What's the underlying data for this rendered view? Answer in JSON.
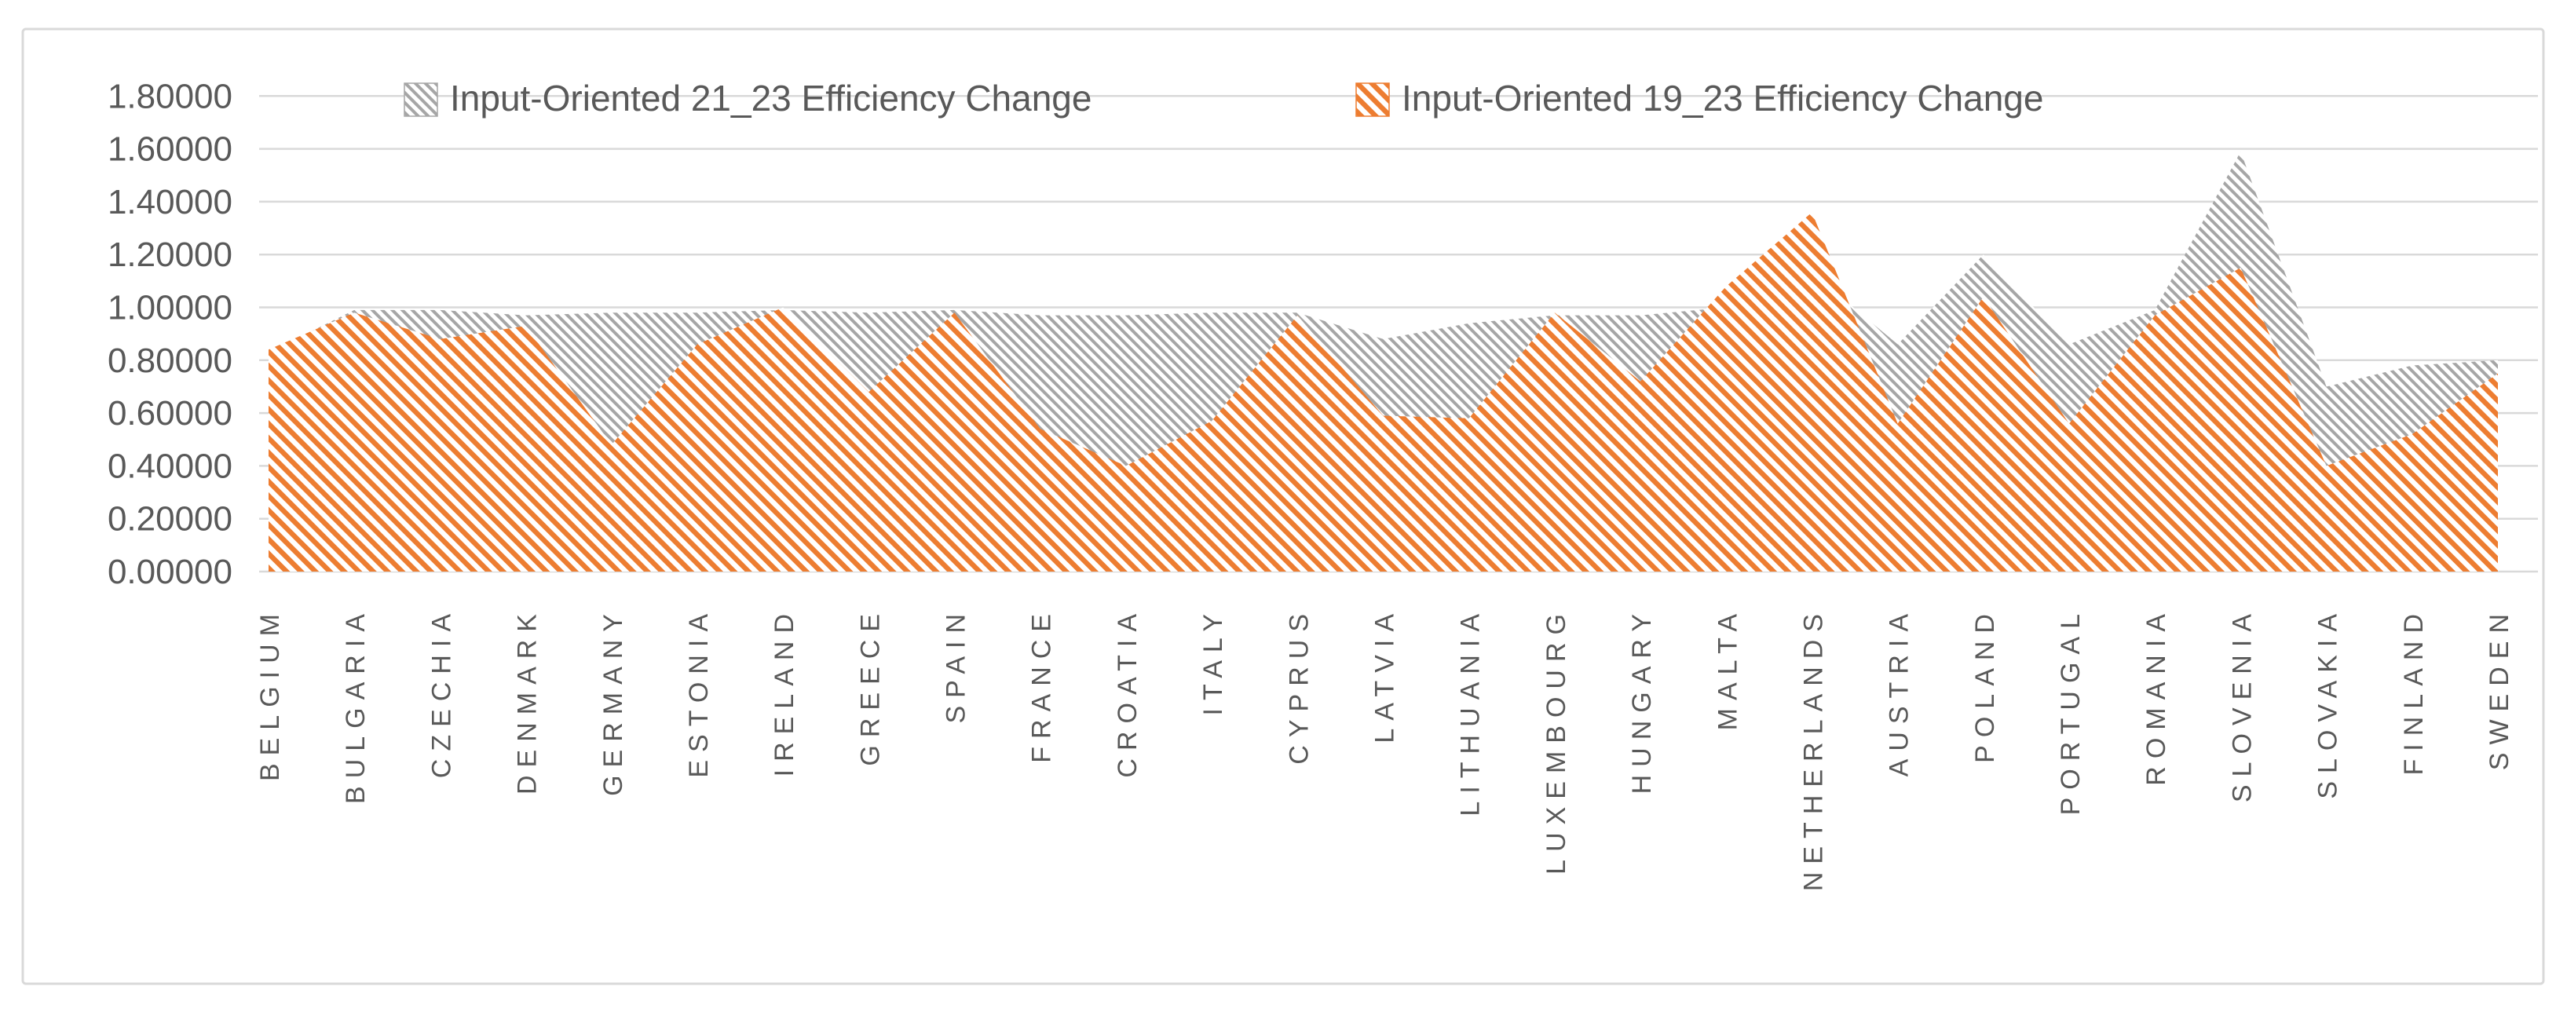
{
  "chart_data": {
    "type": "area",
    "title": "",
    "categories": [
      "BELGIUM",
      "BULGARIA",
      "CZECHIA",
      "DENMARK",
      "GERMANY",
      "ESTONIA",
      "IRELAND",
      "GREECE",
      "SPAIN",
      "FRANCE",
      "CROATIA",
      "ITALY",
      "CYPRUS",
      "LATVIA",
      "LITHUANIA",
      "LUXEMBOURG",
      "HUNGARY",
      "MALTA",
      "NETHERLANDS",
      "AUSTRIA",
      "POLAND",
      "PORTUGAL",
      "ROMANIA",
      "SLOVENIA",
      "SLOVAKIA",
      "FINLAND",
      "SWEDEN"
    ],
    "series": [
      {
        "name": "Input-Oriented 21_23 Efficiency Change",
        "color": "#A6A6A6",
        "fill_style": "diagonal-hatch",
        "values": [
          0.83,
          0.99,
          0.99,
          0.97,
          0.98,
          0.98,
          0.99,
          0.98,
          0.99,
          0.97,
          0.97,
          0.98,
          0.98,
          0.88,
          0.94,
          0.97,
          0.97,
          1.0,
          1.13,
          0.86,
          1.2,
          0.86,
          0.99,
          1.59,
          0.7,
          0.78,
          0.8
        ]
      },
      {
        "name": "Input-Oriented 19_23 Efficiency Change",
        "color": "#ED7D31",
        "fill_style": "diagonal-hatch",
        "values": [
          0.84,
          0.98,
          0.88,
          0.93,
          0.48,
          0.86,
          1.0,
          0.68,
          0.98,
          0.54,
          0.4,
          0.57,
          0.97,
          0.59,
          0.58,
          0.98,
          0.72,
          1.08,
          1.36,
          0.56,
          1.04,
          0.56,
          0.97,
          1.15,
          0.4,
          0.52,
          0.75
        ]
      }
    ],
    "ylim": [
      0,
      1.8
    ],
    "ytick_step": 0.2,
    "yticks": [
      "0.00000",
      "0.20000",
      "0.40000",
      "0.60000",
      "0.80000",
      "1.00000",
      "1.20000",
      "1.40000",
      "1.60000",
      "1.80000"
    ],
    "xlabel": "",
    "ylabel": "",
    "grid": true,
    "legend_position": "top",
    "x_label_rotation": -90
  },
  "style": {
    "gridline_color": "#D9D9D9",
    "border_color": "#D9D9D9",
    "tick_text_color": "#595959",
    "category_text_color": "#595959",
    "legend_text_color": "#595959",
    "plot_background": "#FFFFFF"
  }
}
